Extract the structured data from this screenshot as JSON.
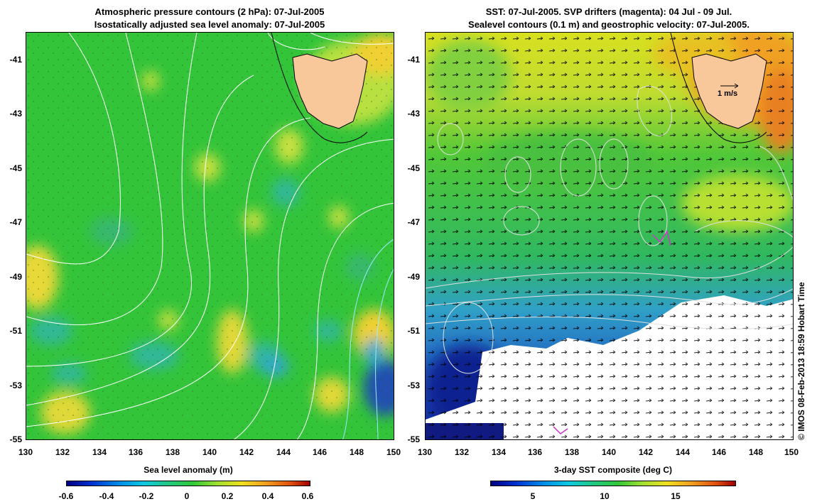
{
  "left": {
    "title_line1": "Atmospheric pressure contours (2 hPa): 07-Jul-2005",
    "title_line2": "Isostatically adjusted sea level anomaly: 07-Jul-2005",
    "colorbar_title": "Sea level anomaly (m)",
    "colorbar_ticks": [
      "-0.6",
      "-0.4",
      "-0.2",
      "0",
      "0.2",
      "0.4",
      "0.6"
    ],
    "colors": {
      "sea": "#35c83a",
      "land": "#f8c89a",
      "contour": "#ffffff"
    }
  },
  "right": {
    "title_line1": "SST: 07-Jul-2005. SVP drifters (magenta): 04 Jul - 09 Jul.",
    "title_line2": "Sealevel contours (0.1 m) and geostrophic velocity: 07-Jul-2005.",
    "colorbar_title": "3-day SST composite (deg C)",
    "colorbar_ticks": [
      "5",
      "10",
      "15"
    ],
    "velocity_scale": "1 m/s",
    "colors": {
      "land": "#f8c89a",
      "drifter": "#cc33cc"
    }
  },
  "axes": {
    "y_ticks": [
      "-41",
      "-43",
      "-45",
      "-47",
      "-49",
      "-51",
      "-53",
      "-55"
    ],
    "x_ticks": [
      "130",
      "132",
      "134",
      "136",
      "138",
      "140",
      "142",
      "144",
      "146",
      "148",
      "150"
    ]
  },
  "credit": "© IMOS 08-Feb-2013 18:59 Hobart Time"
}
